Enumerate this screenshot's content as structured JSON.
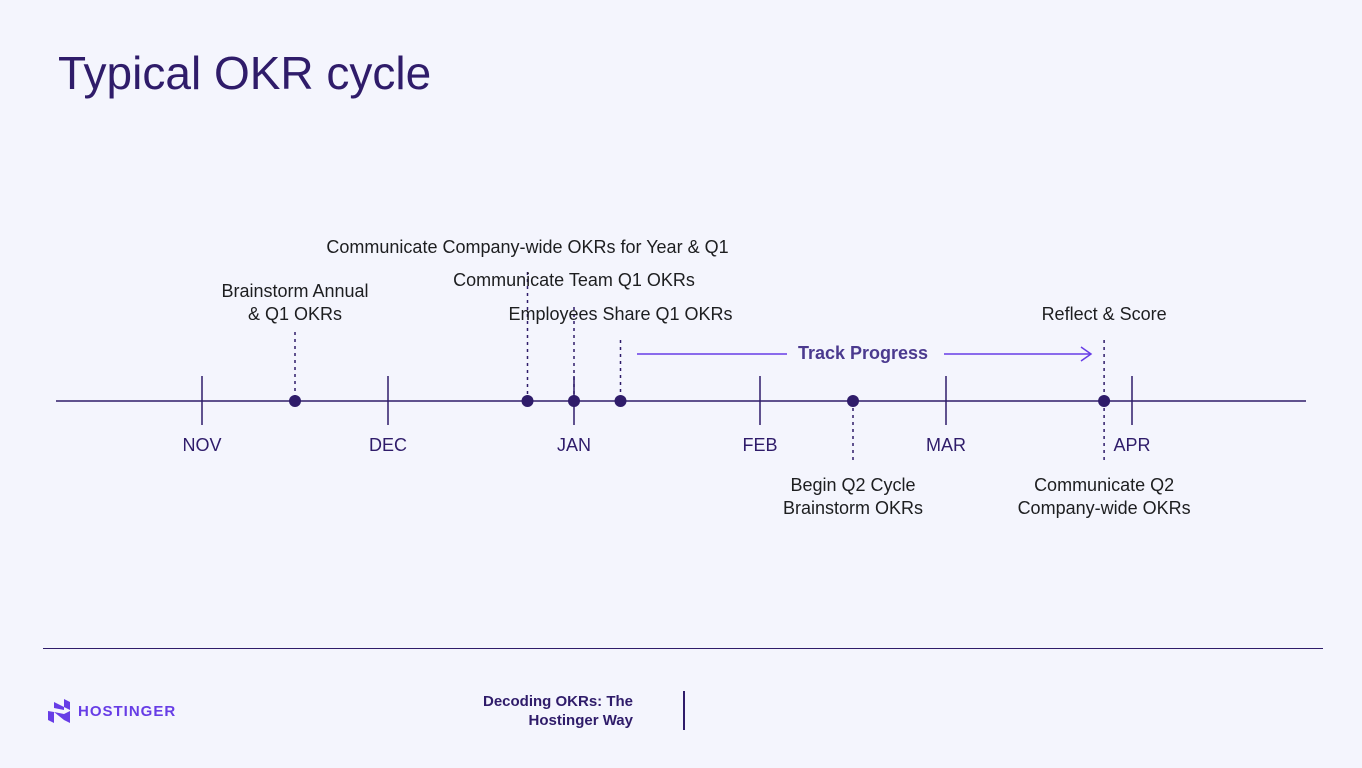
{
  "title": "Typical OKR cycle",
  "colors": {
    "primary": "#2f1c6a",
    "accent": "#673de6",
    "background": "#f4f5fd"
  },
  "months": [
    "NOV",
    "DEC",
    "JAN",
    "FEB",
    "MAR",
    "APR"
  ],
  "events": [
    {
      "label": "Brainstorm Annual\n& Q1 OKRs",
      "month_index": 0.5,
      "side": "above"
    },
    {
      "label": "Communicate Company-wide OKRs for Year & Q1",
      "month_index": 1.75,
      "side": "above"
    },
    {
      "label": "Communicate Team Q1 OKRs",
      "month_index": 2.0,
      "side": "above"
    },
    {
      "label": "Employees Share Q1 OKRs",
      "month_index": 2.25,
      "side": "above"
    },
    {
      "label": "Begin Q2 Cycle\nBrainstorm OKRs",
      "month_index": 3.5,
      "side": "below"
    },
    {
      "label": "Reflect & Score",
      "month_index": 4.85,
      "side": "above"
    },
    {
      "label": "Communicate Q2\nCompany-wide OKRs",
      "month_index": 4.85,
      "side": "below"
    }
  ],
  "track_progress": {
    "label": "Track Progress",
    "icon": "arrow-right-icon"
  },
  "footer": {
    "logo_text": "HOSTINGER",
    "logo_icon": "hostinger-h-logo",
    "deck_title_line1": "Decoding OKRs: The",
    "deck_title_line2": "Hostinger Way"
  }
}
